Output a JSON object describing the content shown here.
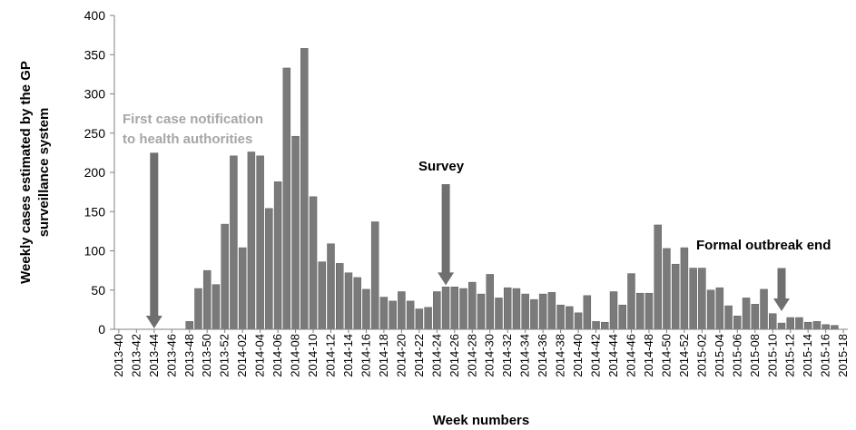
{
  "chart_data": {
    "type": "bar",
    "title": "",
    "xlabel": "Week numbers",
    "ylabel_lines": [
      "Weekly cases estimated by the GP",
      "surveillance system"
    ],
    "ylim": [
      0,
      400
    ],
    "yticks": [
      0,
      50,
      100,
      150,
      200,
      250,
      300,
      350,
      400
    ],
    "grid": false,
    "legend": "none",
    "colors": {
      "bar": "#7a7a7a",
      "bar_edge": "#5e5e5e",
      "arrow": "#6f6f6f",
      "annotation_gray": "#a6a6a6",
      "annotation_dark": "#000000"
    },
    "categories": [
      "2013-40",
      "2013-41",
      "2013-42",
      "2013-43",
      "2013-44",
      "2013-45",
      "2013-46",
      "2013-47",
      "2013-48",
      "2013-49",
      "2013-50",
      "2013-51",
      "2013-52",
      "2014-01",
      "2014-02",
      "2014-03",
      "2014-04",
      "2014-05",
      "2014-06",
      "2014-07",
      "2014-08",
      "2014-09",
      "2014-10",
      "2014-11",
      "2014-12",
      "2014-13",
      "2014-14",
      "2014-15",
      "2014-16",
      "2014-17",
      "2014-18",
      "2014-19",
      "2014-20",
      "2014-21",
      "2014-22",
      "2014-23",
      "2014-24",
      "2014-25",
      "2014-26",
      "2014-27",
      "2014-28",
      "2014-29",
      "2014-30",
      "2014-31",
      "2014-32",
      "2014-33",
      "2014-34",
      "2014-35",
      "2014-36",
      "2014-37",
      "2014-38",
      "2014-39",
      "2014-40",
      "2014-41",
      "2014-42",
      "2014-43",
      "2014-44",
      "2014-45",
      "2014-46",
      "2014-47",
      "2014-48",
      "2014-49",
      "2014-50",
      "2014-51",
      "2014-52",
      "2015-01",
      "2015-02",
      "2015-03",
      "2015-04",
      "2015-05",
      "2015-06",
      "2015-07",
      "2015-08",
      "2015-09",
      "2015-10",
      "2015-11",
      "2015-12",
      "2015-13",
      "2015-14",
      "2015-15",
      "2015-16",
      "2015-17",
      "2015-18"
    ],
    "values": [
      0,
      0,
      0,
      0,
      0,
      0,
      0,
      0,
      10,
      52,
      75,
      57,
      134,
      221,
      104,
      226,
      221,
      154,
      188,
      333,
      246,
      358,
      169,
      86,
      109,
      84,
      72,
      66,
      51,
      137,
      41,
      36,
      48,
      36,
      26,
      28,
      48,
      54,
      54,
      52,
      60,
      45,
      70,
      40,
      53,
      52,
      45,
      38,
      45,
      47,
      31,
      29,
      21,
      43,
      10,
      9,
      48,
      31,
      71,
      46,
      46,
      133,
      103,
      83,
      104,
      78,
      78,
      50,
      53,
      30,
      17,
      40,
      32,
      51,
      20,
      8,
      15,
      15,
      9,
      10,
      6,
      5,
      0
    ],
    "xtick_labels": [
      "2013-40",
      "2013-42",
      "2013-44",
      "2013-46",
      "2013-48",
      "2013-50",
      "2013-52",
      "2014-02",
      "2014-04",
      "2014-06",
      "2014-08",
      "2014-10",
      "2014-12",
      "2014-14",
      "2014-16",
      "2014-18",
      "2014-20",
      "2014-22",
      "2014-24",
      "2014-26",
      "2014-28",
      "2014-30",
      "2014-32",
      "2014-34",
      "2014-36",
      "2014-38",
      "2014-40",
      "2014-42",
      "2014-44",
      "2014-46",
      "2014-48",
      "2014-50",
      "2014-52",
      "2015-02",
      "2015-04",
      "2015-06",
      "2015-08",
      "2015-10",
      "2015-12",
      "2015-14",
      "2015-16",
      "2015-18"
    ],
    "annotations": [
      {
        "lines": [
          "First case notification",
          "to health authorities"
        ],
        "color": "gray",
        "arrow_category": "2013-44",
        "arrow_from": 225,
        "arrow_to": 0
      },
      {
        "lines": [
          "Survey"
        ],
        "color": "dark",
        "arrow_category": "2014-25",
        "arrow_from": 185,
        "arrow_to": 55
      },
      {
        "lines": [
          "Formal outbreak end"
        ],
        "color": "dark",
        "arrow_category": "2015-11",
        "arrow_from": 78,
        "arrow_to": 22
      }
    ]
  }
}
